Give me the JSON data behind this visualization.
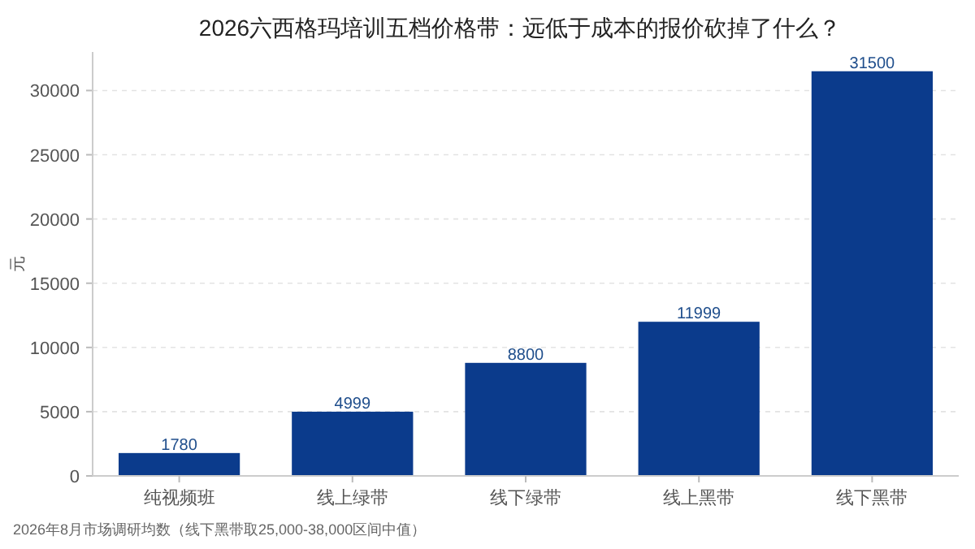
{
  "chart_data": {
    "type": "bar",
    "title": "2026六西格玛培训五档价格带：远低于成本的报价砍掉了什么？",
    "ylabel": "元",
    "categories": [
      "纯视频班",
      "线上绿带",
      "线下绿带",
      "线上黑带",
      "线下黑带"
    ],
    "values": [
      1780,
      4999,
      8800,
      11999,
      31500
    ],
    "color": "#0b3b8c",
    "ylim": [
      0,
      33000
    ],
    "yticks": [
      0,
      5000,
      10000,
      15000,
      20000,
      25000,
      30000
    ],
    "grid": "y",
    "data_labels": true,
    "annotations": [
      "2026年8月市场调研均数（线下黑带取25,000-38,000区间中值）"
    ]
  }
}
